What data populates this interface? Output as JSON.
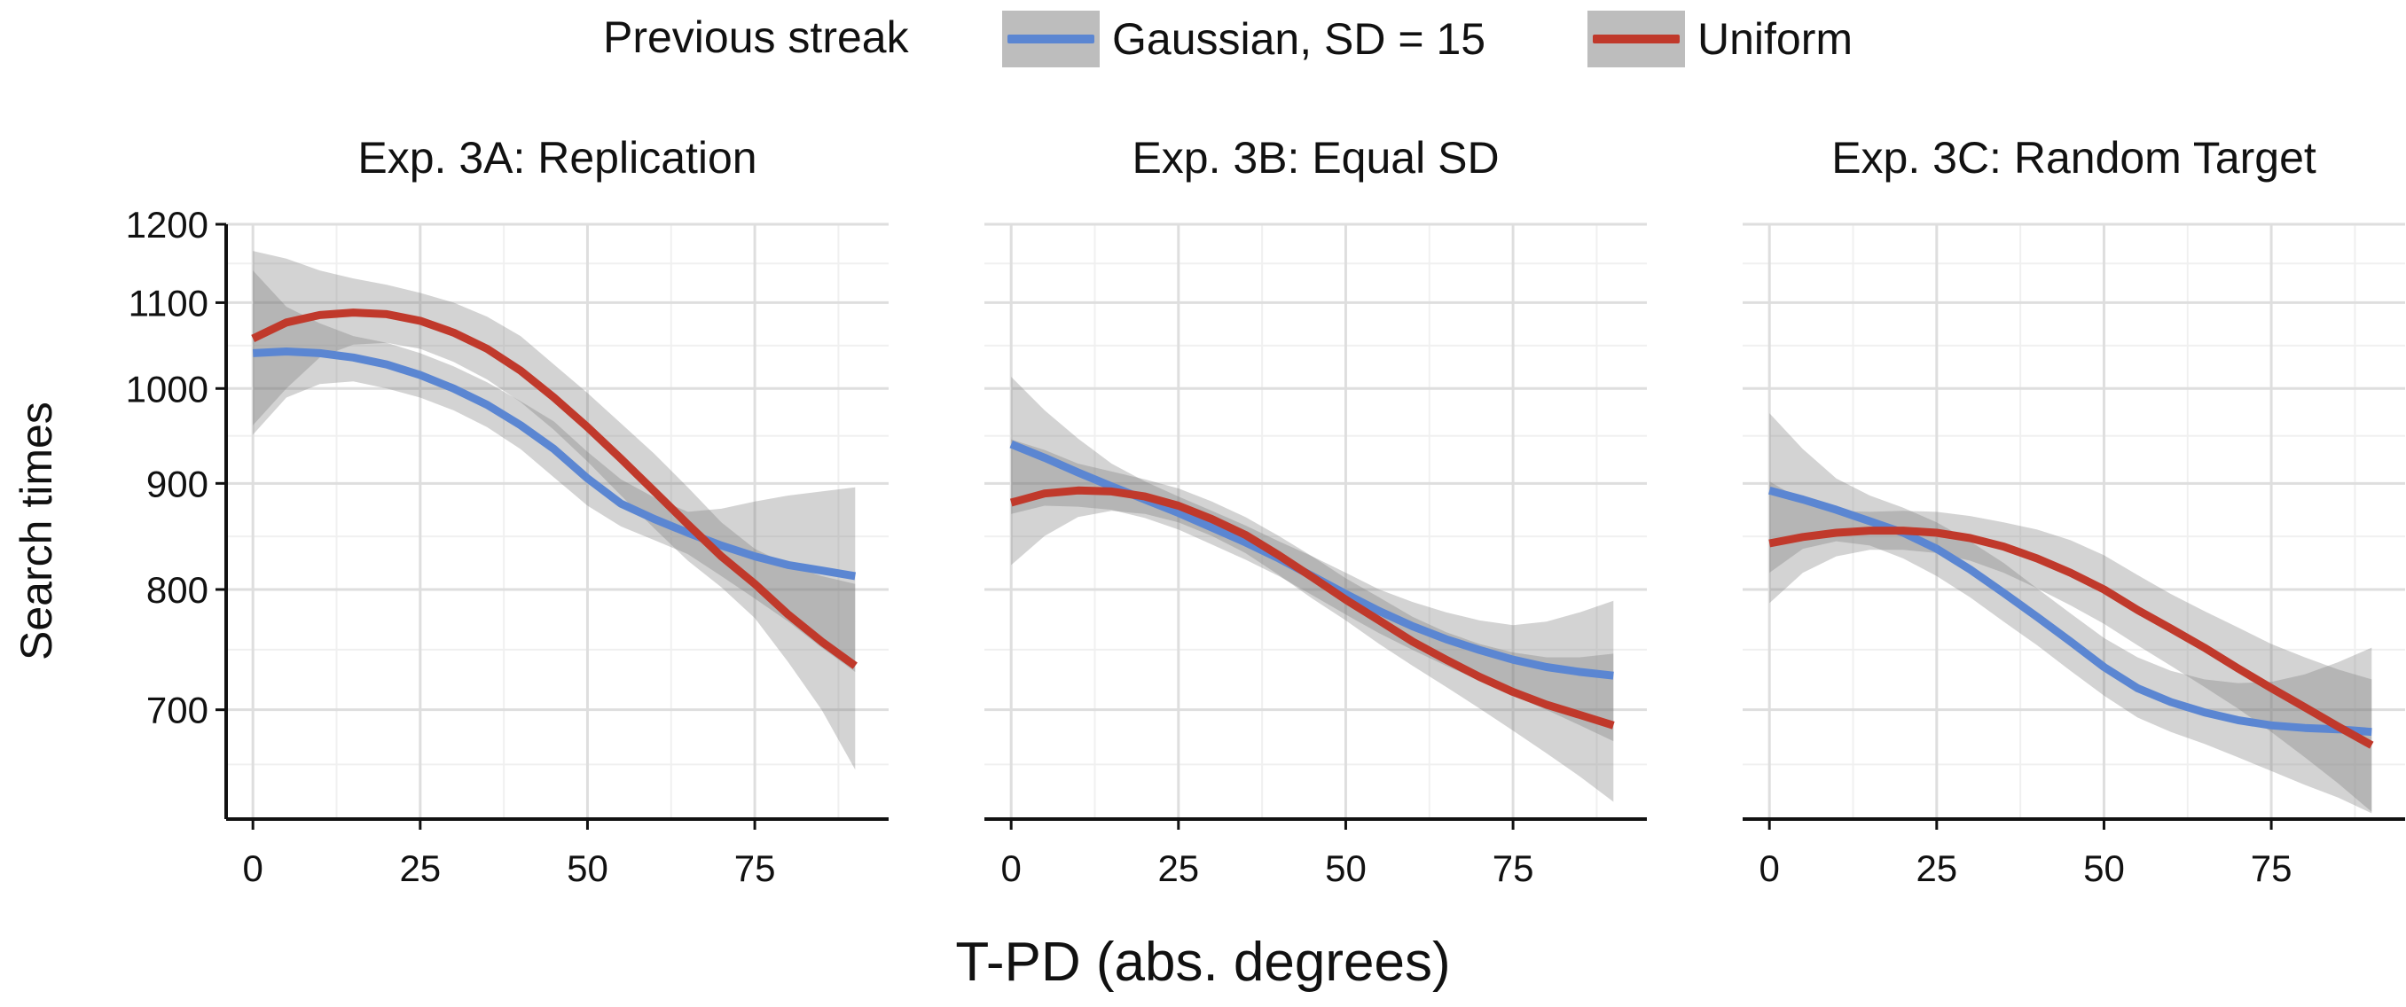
{
  "legend": {
    "title": "Previous streak",
    "items": [
      {
        "label": "Gaussian, SD = 15",
        "color": "#5b86d2"
      },
      {
        "label": "Uniform",
        "color": "#c0392b"
      }
    ]
  },
  "chart_data": {
    "type": "line",
    "ylabel": "Search times",
    "xlabel": "T-PD (abs. degrees)",
    "y_scale": "log",
    "ylim": [
      620,
      1200
    ],
    "xlim": [
      -4,
      95
    ],
    "x_ticks": [
      0,
      25,
      50,
      75
    ],
    "y_ticks": [
      700,
      800,
      900,
      1000,
      1100,
      1200
    ],
    "grid": true,
    "legend_position": "top",
    "panels": [
      {
        "title": "Exp. 3A: Replication",
        "series": [
          {
            "name": "Gaussian, SD = 15",
            "color": "#5b86d2",
            "x": [
              0,
              5,
              10,
              15,
              20,
              25,
              30,
              35,
              40,
              45,
              50,
              55,
              60,
              65,
              70,
              75,
              80,
              85,
              90
            ],
            "y": [
              1040,
              1042,
              1040,
              1035,
              1027,
              1015,
              1000,
              982,
              960,
              935,
              905,
              880,
              865,
              852,
              840,
              830,
              822,
              817,
              812
            ],
            "lower": [
              950,
              990,
              1005,
              1008,
              1000,
              990,
              976,
              958,
              935,
              906,
              878,
              858,
              845,
              832,
              812,
              792,
              772,
              750,
              730
            ],
            "upper": [
              1140,
              1095,
              1075,
              1060,
              1052,
              1040,
              1025,
              1007,
              986,
              964,
              932,
              904,
              886,
              872,
              875,
              882,
              888,
              892,
              896
            ]
          },
          {
            "name": "Uniform",
            "color": "#c0392b",
            "x": [
              0,
              5,
              10,
              15,
              20,
              25,
              30,
              35,
              40,
              45,
              50,
              55,
              60,
              65,
              70,
              75,
              80,
              85,
              90
            ],
            "y": [
              1057,
              1076,
              1085,
              1088,
              1086,
              1078,
              1064,
              1045,
              1020,
              990,
              958,
              925,
              892,
              860,
              830,
              805,
              778,
              755,
              735
            ],
            "lower": [
              960,
              1000,
              1035,
              1050,
              1052,
              1045,
              1030,
              1010,
              985,
              955,
              922,
              888,
              856,
              826,
              802,
              775,
              738,
              700,
              655
            ],
            "upper": [
              1165,
              1155,
              1140,
              1130,
              1122,
              1112,
              1100,
              1083,
              1060,
              1027,
              995,
              962,
              930,
              896,
              862,
              837,
              822,
              812,
              805
            ]
          }
        ]
      },
      {
        "title": "Exp. 3B: Equal SD",
        "series": [
          {
            "name": "Gaussian, SD = 15",
            "color": "#5b86d2",
            "x": [
              0,
              5,
              10,
              15,
              20,
              25,
              30,
              35,
              40,
              45,
              50,
              55,
              60,
              65,
              70,
              75,
              80,
              85,
              90
            ],
            "y": [
              940,
              926,
              911,
              897,
              884,
              871,
              857,
              843,
              828,
              812,
              796,
              781,
              768,
              757,
              748,
              740,
              734,
              730,
              727
            ],
            "lower": [
              870,
              878,
              877,
              874,
              866,
              855,
              841,
              827,
              812,
              795,
              778,
              762,
              748,
              735,
              723,
              711,
              700,
              688,
              676
            ],
            "upper": [
              1013,
              976,
              946,
              920,
              902,
              887,
              873,
              859,
              844,
              830,
              815,
              800,
              789,
              780,
              773,
              769,
              772,
              780,
              790
            ]
          },
          {
            "name": "Uniform",
            "color": "#c0392b",
            "x": [
              0,
              5,
              10,
              15,
              20,
              25,
              30,
              35,
              40,
              45,
              50,
              55,
              60,
              65,
              70,
              75,
              80,
              85,
              90
            ],
            "y": [
              881,
              890,
              893,
              892,
              887,
              878,
              865,
              850,
              831,
              811,
              791,
              773,
              755,
              740,
              726,
              714,
              704,
              696,
              688
            ],
            "lower": [
              822,
              849,
              867,
              873,
              870,
              862,
              849,
              833,
              813,
              792,
              773,
              753,
              735,
              718,
              701,
              684,
              667,
              650,
              632
            ],
            "upper": [
              945,
              934,
              920,
              912,
              904,
              895,
              882,
              867,
              849,
              830,
              810,
              793,
              776,
              763,
              753,
              746,
              742,
              742,
              745
            ]
          }
        ]
      },
      {
        "title": "Exp. 3C: Random Target",
        "series": [
          {
            "name": "Gaussian, SD = 15",
            "color": "#5b86d2",
            "x": [
              0,
              5,
              10,
              15,
              20,
              25,
              30,
              35,
              40,
              45,
              50,
              55,
              60,
              65,
              70,
              75,
              80,
              85,
              90
            ],
            "y": [
              893,
              884,
              874,
              863,
              852,
              837,
              818,
              797,
              776,
              755,
              734,
              717,
              706,
              698,
              692,
              688,
              686,
              685,
              683
            ],
            "lower": [
              815,
              837,
              844,
              840,
              828,
              812,
              793,
              772,
              752,
              731,
              711,
              694,
              683,
              674,
              664,
              654,
              644,
              635,
              624
            ],
            "upper": [
              973,
              935,
              905,
              888,
              876,
              862,
              844,
              824,
              801,
              779,
              758,
              742,
              731,
              724,
              721,
              722,
              728,
              738,
              750
            ]
          },
          {
            "name": "Uniform",
            "color": "#c0392b",
            "x": [
              0,
              5,
              10,
              15,
              20,
              25,
              30,
              35,
              40,
              45,
              50,
              55,
              60,
              65,
              70,
              75,
              80,
              85,
              90
            ],
            "y": [
              842,
              848,
              852,
              854,
              854,
              852,
              847,
              839,
              828,
              815,
              800,
              782,
              766,
              750,
              733,
              717,
              702,
              687,
              673
            ],
            "lower": [
              788,
              815,
              830,
              836,
              836,
              833,
              826,
              815,
              801,
              786,
              770,
              752,
              735,
              718,
              701,
              683,
              664,
              645,
              625
            ],
            "upper": [
              902,
              883,
              873,
              872,
              873,
              872,
              868,
              862,
              855,
              845,
              831,
              813,
              796,
              781,
              767,
              753,
              742,
              732,
              724
            ]
          }
        ]
      }
    ]
  }
}
